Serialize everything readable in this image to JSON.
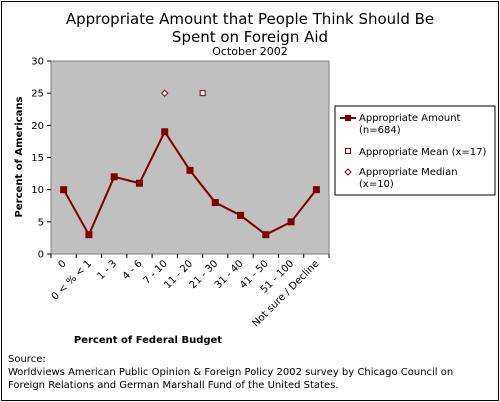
{
  "chart_data": {
    "type": "line",
    "title": [
      "Appropriate Amount that People Think Should Be",
      "Spent on Foreign Aid"
    ],
    "subtitle": "October 2002",
    "xlabel": "Percent of Federal Budget",
    "ylabel": "Percent of Americans",
    "ylim": [
      0,
      30
    ],
    "yticks": [
      0,
      5,
      10,
      15,
      20,
      25,
      30
    ],
    "grid": false,
    "legend_position": "right",
    "categories": [
      "0",
      "0 < % < 1",
      "1 - 3",
      "4 - 6",
      "7 - 10",
      "11 - 20",
      "21 - 30",
      "31 - 40",
      "41 - 50",
      "51 - 100",
      "Not sure / Decline"
    ],
    "series": [
      {
        "name": [
          "Appropriate Amount",
          "(n=684)"
        ],
        "marker": "filled-square",
        "color": "#800000",
        "values": [
          10,
          3,
          12,
          11,
          19,
          13,
          8,
          6,
          3,
          5,
          10
        ]
      },
      {
        "name": [
          "Appropriate Mean (x=17)"
        ],
        "marker": "open-square",
        "color": "#800000",
        "points": [
          {
            "x": 5.5,
            "y": 25
          }
        ]
      },
      {
        "name": [
          "Appropriate Median",
          "(x=10)"
        ],
        "marker": "open-diamond",
        "color": "#800000",
        "points": [
          {
            "x": 4,
            "y": 25
          }
        ]
      }
    ],
    "plot_background": "#c0c0c0",
    "line_color": "#800000"
  },
  "source": [
    "Source:",
    "Worldviews  American Public Opinion & Foreign Policy 2002 survey by Chicago Council on",
    "Foreign Relations and German Marshall Fund of the United States."
  ]
}
